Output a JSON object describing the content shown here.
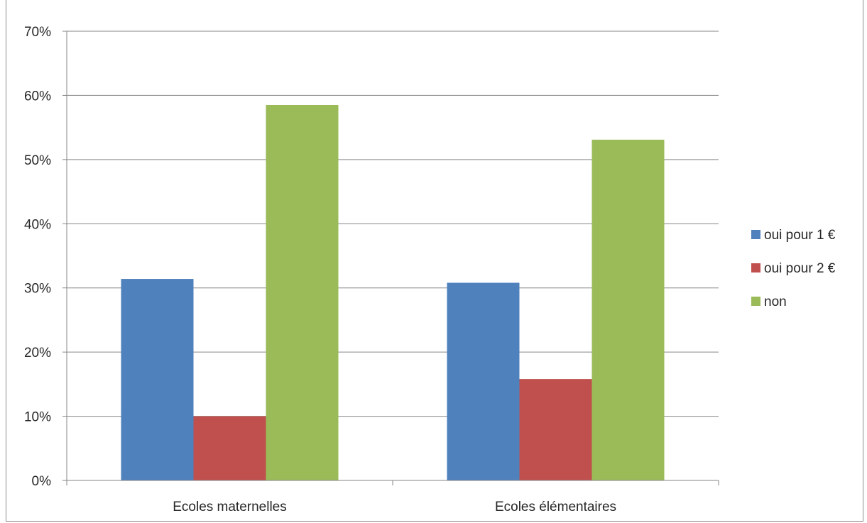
{
  "chart_data": {
    "type": "bar",
    "title": "",
    "xlabel": "",
    "ylabel": "",
    "categories": [
      "Ecoles maternelles",
      "Ecoles élémentaires"
    ],
    "series": [
      {
        "name": "oui pour 1 €",
        "values": [
          31.4,
          30.8
        ],
        "color": "#4f81bd"
      },
      {
        "name": "oui pour 2 €",
        "values": [
          10.0,
          15.8
        ],
        "color": "#c0504d"
      },
      {
        "name": "non",
        "values": [
          58.5,
          53.1
        ],
        "color": "#9bbb59"
      }
    ],
    "ylim": [
      0,
      70
    ],
    "yticks": [
      0,
      10,
      20,
      30,
      40,
      50,
      60,
      70
    ],
    "ytick_labels": [
      "0%",
      "10%",
      "20%",
      "30%",
      "40%",
      "50%",
      "60%",
      "70%"
    ],
    "grid": true,
    "legend_position": "right"
  }
}
